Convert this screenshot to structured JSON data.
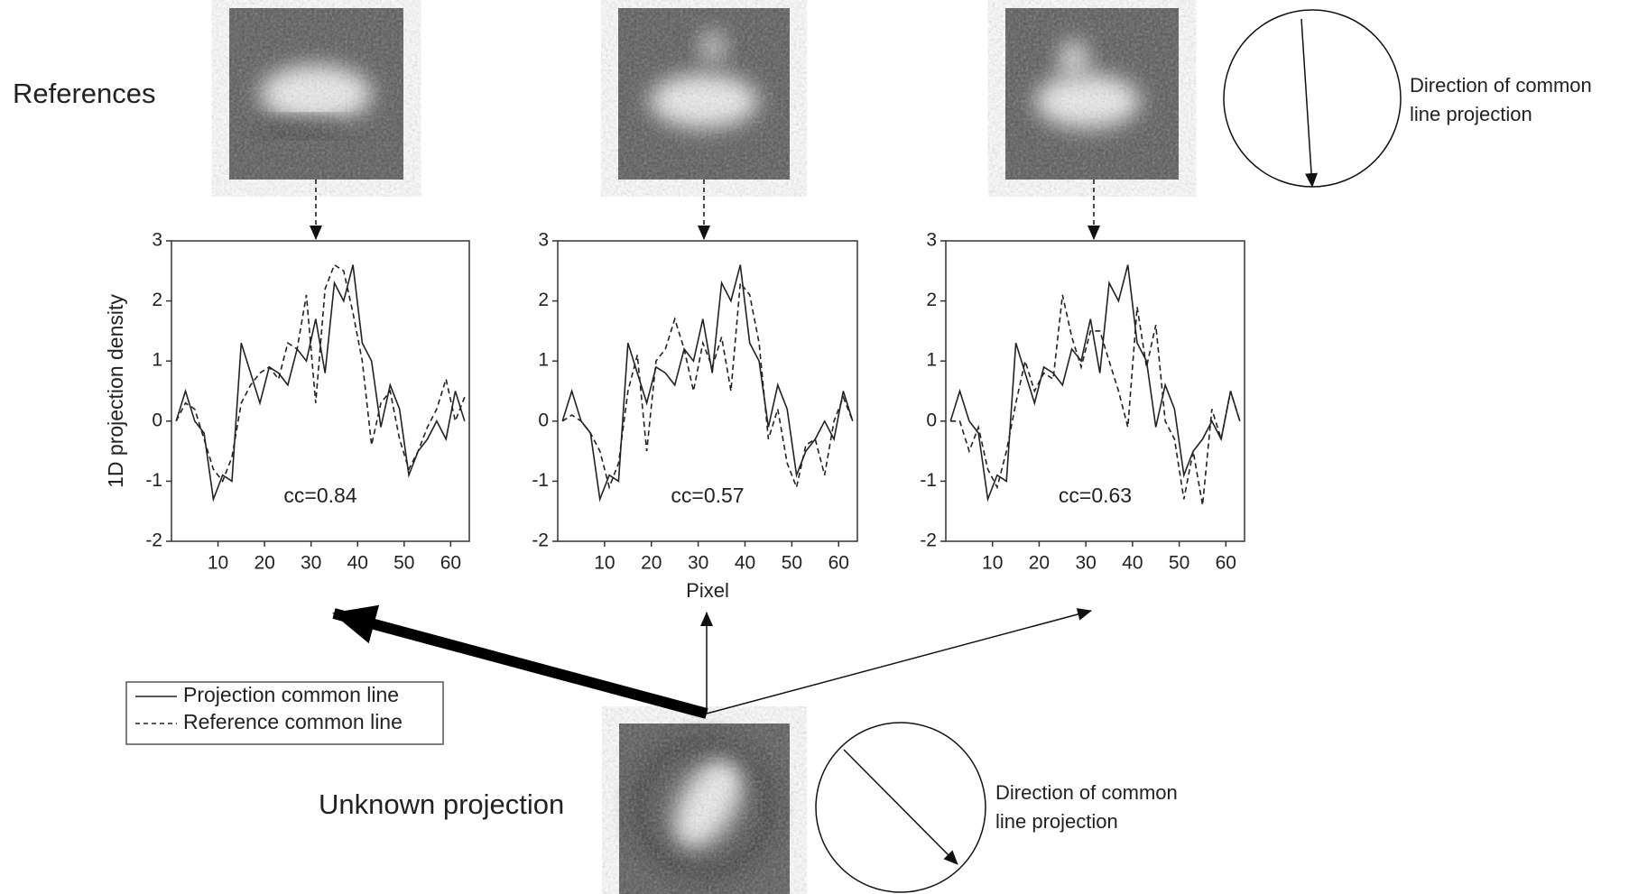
{
  "references_label": "References",
  "unknown_label": "Unknown projection",
  "direction_top": [
    "Direction of common",
    "line projection"
  ],
  "direction_bottom": [
    "Direction of common",
    "line projection"
  ],
  "chart_data": [
    {
      "type": "line",
      "ylabel": "1D projection density",
      "annotation": "cc=0.84",
      "x": [
        1,
        3,
        5,
        7,
        9,
        11,
        13,
        15,
        17,
        19,
        21,
        23,
        25,
        27,
        29,
        31,
        33,
        35,
        37,
        39,
        41,
        43,
        45,
        47,
        49,
        51,
        53,
        55,
        57,
        59,
        61,
        63
      ],
      "series": [
        {
          "name": "Projection common line",
          "color": "#222222",
          "dash": false,
          "values": [
            0,
            0.5,
            0,
            -0.2,
            -1.3,
            -0.9,
            -1.0,
            1.3,
            0.8,
            0.3,
            0.9,
            0.8,
            0.6,
            1.2,
            1.0,
            1.7,
            0.8,
            2.3,
            2.0,
            2.6,
            1.3,
            1.0,
            -0.1,
            0.6,
            0.2,
            -0.9,
            -0.5,
            -0.3,
            0,
            -0.3,
            0.5,
            0
          ]
        },
        {
          "name": "Reference common line",
          "color": "#222222",
          "dash": true,
          "values": [
            0,
            0.3,
            0.2,
            -0.3,
            -0.8,
            -1.0,
            -0.6,
            0.3,
            0.6,
            0.8,
            0.9,
            0.7,
            1.3,
            1.2,
            2.1,
            0.3,
            2.2,
            2.6,
            2.5,
            1.8,
            1.0,
            -0.4,
            0.3,
            0.5,
            -0.3,
            -0.8,
            -0.5,
            -0.1,
            0.2,
            0.7,
            0,
            0.4
          ]
        }
      ],
      "xlim": [
        0,
        64
      ],
      "ylim": [
        -2,
        3
      ],
      "xticks": [
        10,
        20,
        30,
        40,
        50,
        60
      ],
      "yticks": [
        -2,
        -1,
        0,
        1,
        2,
        3
      ]
    },
    {
      "type": "line",
      "xlabel": "Pixel",
      "annotation": "cc=0.57",
      "x": [
        1,
        3,
        5,
        7,
        9,
        11,
        13,
        15,
        17,
        19,
        21,
        23,
        25,
        27,
        29,
        31,
        33,
        35,
        37,
        39,
        41,
        43,
        45,
        47,
        49,
        51,
        53,
        55,
        57,
        59,
        61,
        63
      ],
      "series": [
        {
          "name": "Projection common line",
          "color": "#222222",
          "dash": false,
          "values": [
            0,
            0.5,
            0,
            -0.2,
            -1.3,
            -0.9,
            -1.0,
            1.3,
            0.8,
            0.3,
            0.9,
            0.8,
            0.6,
            1.2,
            1.0,
            1.7,
            0.8,
            2.3,
            2.0,
            2.6,
            1.3,
            1.0,
            -0.1,
            0.6,
            0.2,
            -0.9,
            -0.5,
            -0.3,
            0,
            -0.3,
            0.5,
            0
          ]
        },
        {
          "name": "Reference common line",
          "color": "#222222",
          "dash": true,
          "values": [
            0,
            0.1,
            0,
            -0.2,
            -0.5,
            -1.1,
            -0.7,
            0.5,
            1.1,
            -0.5,
            1.0,
            1.2,
            1.7,
            1.2,
            0.5,
            1.3,
            0.9,
            1.4,
            0.5,
            2.3,
            2.1,
            1.3,
            -0.3,
            0.2,
            -0.7,
            -1.1,
            -0.4,
            -0.3,
            -0.9,
            0,
            0.4,
            0
          ]
        }
      ],
      "xlim": [
        0,
        64
      ],
      "ylim": [
        -2,
        3
      ],
      "xticks": [
        10,
        20,
        30,
        40,
        50,
        60
      ],
      "yticks": [
        -2,
        -1,
        0,
        1,
        2,
        3
      ]
    },
    {
      "type": "line",
      "annotation": "cc=0.63",
      "x": [
        1,
        3,
        5,
        7,
        9,
        11,
        13,
        15,
        17,
        19,
        21,
        23,
        25,
        27,
        29,
        31,
        33,
        35,
        37,
        39,
        41,
        43,
        45,
        47,
        49,
        51,
        53,
        55,
        57,
        59,
        61,
        63
      ],
      "series": [
        {
          "name": "Projection common line",
          "color": "#222222",
          "dash": false,
          "values": [
            0,
            0.5,
            0,
            -0.2,
            -1.3,
            -0.9,
            -1.0,
            1.3,
            0.8,
            0.3,
            0.9,
            0.8,
            0.6,
            1.2,
            1.0,
            1.7,
            0.8,
            2.3,
            2.0,
            2.6,
            1.3,
            1.0,
            -0.1,
            0.6,
            0.2,
            -0.9,
            -0.5,
            -0.3,
            0,
            -0.3,
            0.5,
            0
          ]
        },
        {
          "name": "Reference common line",
          "color": "#222222",
          "dash": true,
          "values": [
            0,
            0,
            -0.5,
            -0.1,
            -0.8,
            -1.1,
            -0.5,
            0.3,
            1.0,
            0.5,
            0.8,
            0.7,
            2.1,
            1.4,
            0.9,
            1.5,
            1.5,
            1.0,
            0.5,
            -0.1,
            1.9,
            0.9,
            1.6,
            0,
            -0.3,
            -1.3,
            -0.5,
            -1.4,
            0.2,
            -0.3,
            0.5,
            0
          ]
        }
      ],
      "xlim": [
        0,
        64
      ],
      "ylim": [
        -2,
        3
      ],
      "xticks": [
        10,
        20,
        30,
        40,
        50,
        60
      ],
      "yticks": [
        -2,
        -1,
        0,
        1,
        2,
        3
      ]
    }
  ]
}
